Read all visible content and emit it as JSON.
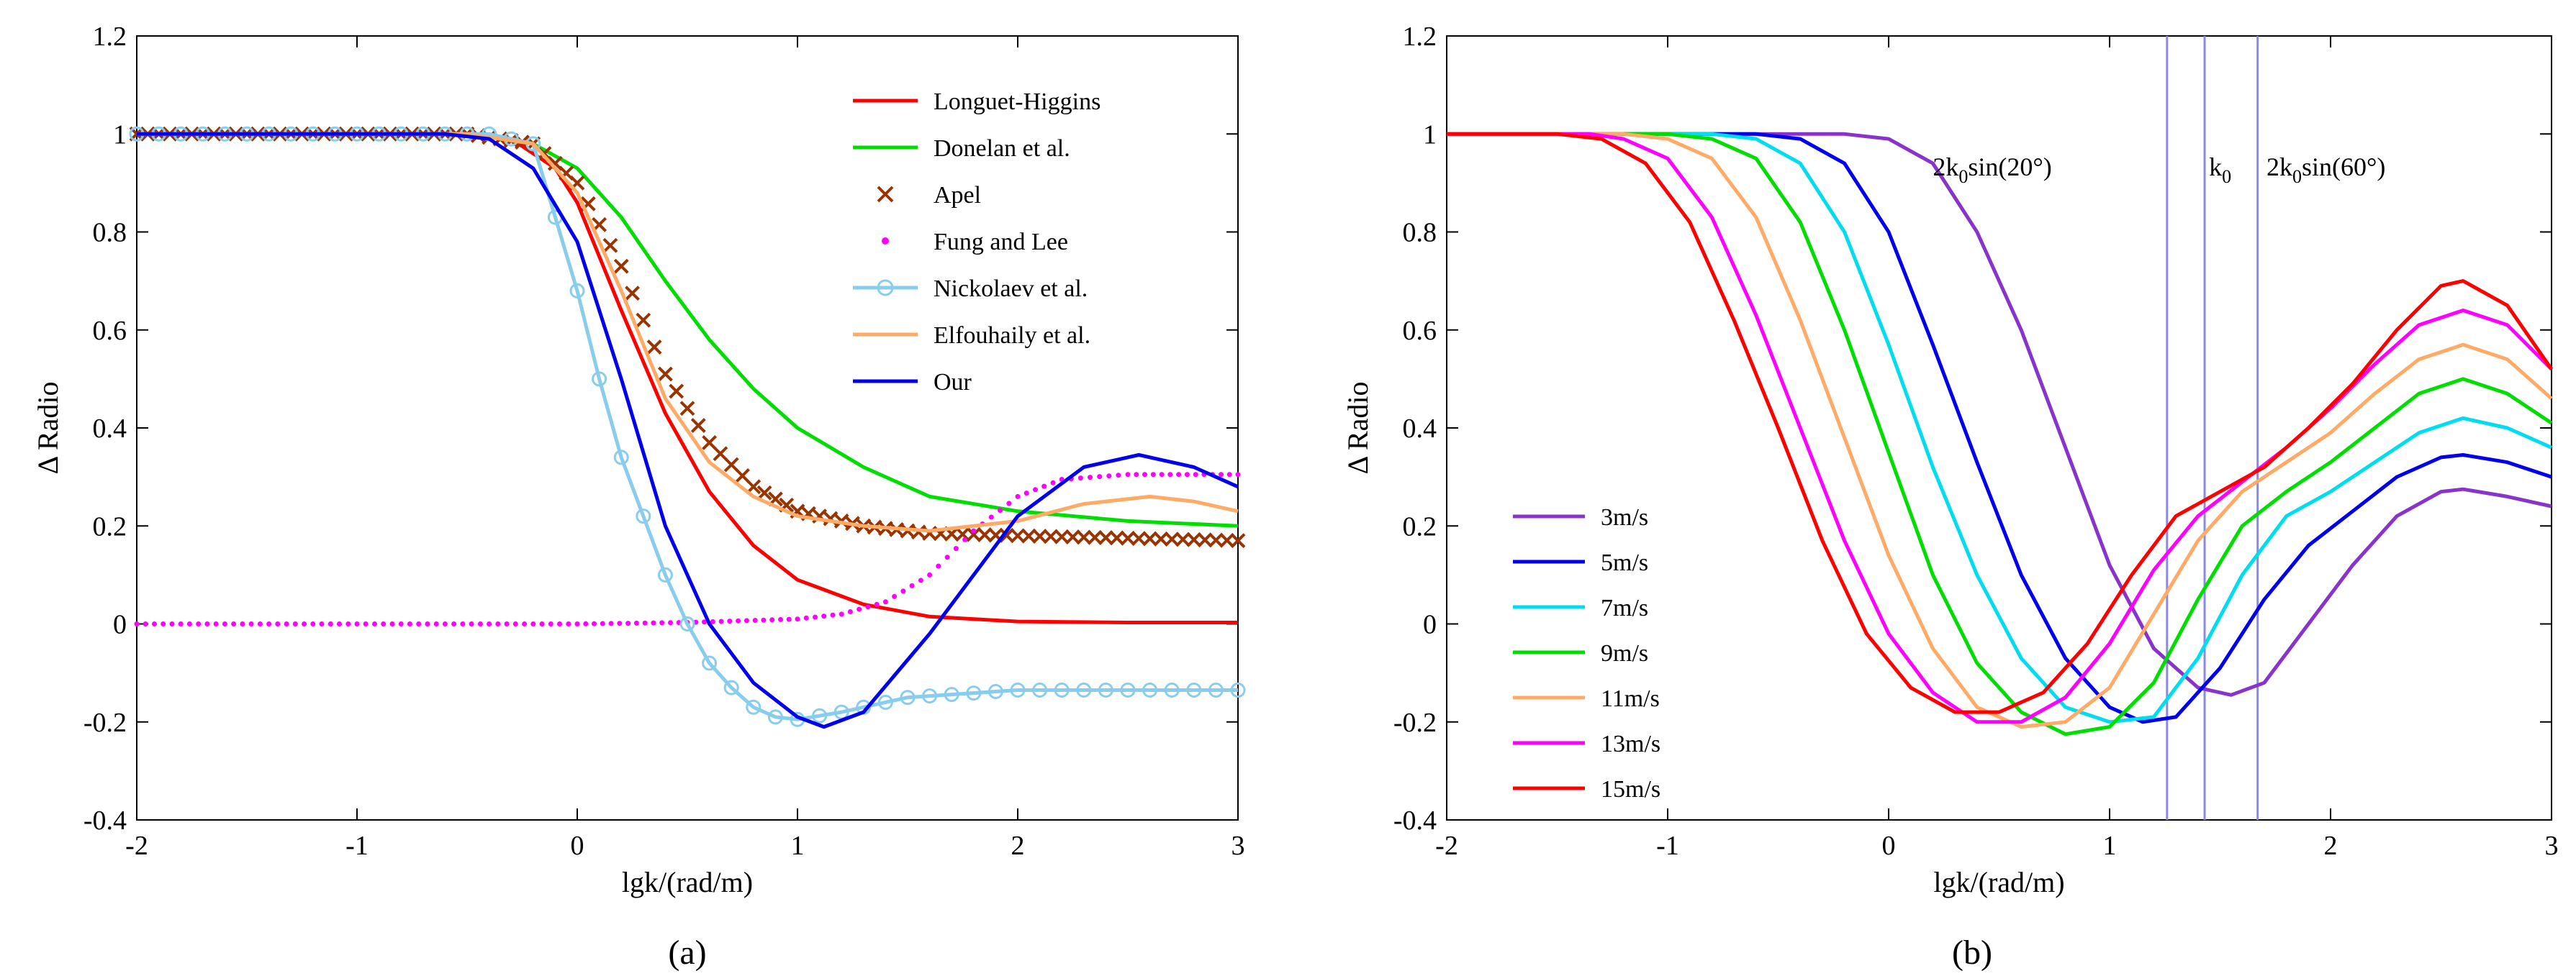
{
  "figure": {
    "caption_a": "(a)",
    "caption_b": "(b)"
  },
  "chart_data": [
    {
      "type": "line",
      "panel": "(a)",
      "title": "",
      "xlabel": "lgk/(rad/m)",
      "ylabel": "Δ Radio",
      "xlim": [
        -2,
        3
      ],
      "ylim": [
        -0.4,
        1.2
      ],
      "xticks": [
        -2,
        -1,
        0,
        1,
        2,
        3
      ],
      "yticks": [
        -0.4,
        -0.2,
        0,
        0.2,
        0.4,
        0.6,
        0.8,
        1,
        1.2
      ],
      "ytick_labels": [
        "-0.4",
        "-0.2",
        "0",
        "0.2",
        "0.4",
        "0.6",
        "0.8",
        "1",
        "1.2"
      ],
      "legend_position": "top-right",
      "series": [
        {
          "name": "Longuet-Higgins",
          "color": "#ff0000",
          "style": "solid",
          "x": [
            -2,
            -0.5,
            -0.3,
            -0.1,
            0,
            0.2,
            0.4,
            0.6,
            0.8,
            1.0,
            1.3,
            1.6,
            2.0,
            2.5,
            3.0
          ],
          "y": [
            1,
            1,
            0.99,
            0.93,
            0.86,
            0.64,
            0.43,
            0.27,
            0.16,
            0.09,
            0.04,
            0.015,
            0.005,
            0.003,
            0.003
          ]
        },
        {
          "name": "Donelan et al.",
          "color": "#00dd00",
          "style": "solid",
          "x": [
            -2,
            -0.5,
            -0.2,
            0,
            0.2,
            0.4,
            0.6,
            0.8,
            1.0,
            1.3,
            1.6,
            2.0,
            2.5,
            3.0
          ],
          "y": [
            1,
            1,
            0.98,
            0.93,
            0.83,
            0.7,
            0.58,
            0.48,
            0.4,
            0.32,
            0.26,
            0.23,
            0.21,
            0.2
          ]
        },
        {
          "name": "Apel",
          "color": "#993300",
          "style": "x",
          "x": [
            -2,
            -0.5,
            -0.2,
            0,
            0.2,
            0.4,
            0.6,
            0.8,
            1.0,
            1.3,
            1.6,
            2.0,
            2.5,
            3.0
          ],
          "y": [
            1,
            1,
            0.98,
            0.9,
            0.73,
            0.51,
            0.37,
            0.28,
            0.23,
            0.2,
            0.185,
            0.18,
            0.175,
            0.17
          ]
        },
        {
          "name": "Fung and Lee",
          "color": "#ff00ff",
          "style": "dot",
          "x": [
            -2,
            0,
            0.5,
            1.0,
            1.2,
            1.4,
            1.6,
            1.8,
            2.0,
            2.2,
            2.5,
            3.0
          ],
          "y": [
            0,
            0,
            0.003,
            0.01,
            0.02,
            0.045,
            0.1,
            0.19,
            0.26,
            0.295,
            0.305,
            0.305
          ]
        },
        {
          "name": "Nickolaev et al.",
          "color": "#88ccee",
          "style": "circle",
          "x": [
            -2,
            -0.6,
            -0.4,
            -0.2,
            0,
            0.1,
            0.2,
            0.3,
            0.4,
            0.5,
            0.6,
            0.7,
            0.8,
            0.9,
            1.0,
            1.2,
            1.5,
            2.0,
            2.5,
            3.0
          ],
          "y": [
            1,
            1,
            1,
            0.98,
            0.68,
            0.5,
            0.34,
            0.22,
            0.1,
            0.0,
            -0.08,
            -0.13,
            -0.17,
            -0.19,
            -0.195,
            -0.18,
            -0.15,
            -0.135,
            -0.135,
            -0.135
          ]
        },
        {
          "name": "Elfouhaily et al.",
          "color": "#ffaa66",
          "style": "solid",
          "x": [
            -2,
            -0.5,
            -0.2,
            0,
            0.2,
            0.4,
            0.6,
            0.8,
            1.0,
            1.3,
            1.6,
            2.0,
            2.3,
            2.6,
            2.8,
            3.0
          ],
          "y": [
            1,
            1,
            0.98,
            0.88,
            0.68,
            0.46,
            0.33,
            0.26,
            0.22,
            0.2,
            0.19,
            0.21,
            0.245,
            0.26,
            0.25,
            0.23
          ]
        },
        {
          "name": "Our",
          "color": "#0000ee",
          "style": "solid",
          "x": [
            -2,
            -0.6,
            -0.4,
            -0.2,
            0,
            0.2,
            0.4,
            0.6,
            0.8,
            1.0,
            1.12,
            1.3,
            1.6,
            2.0,
            2.3,
            2.55,
            2.8,
            3.0
          ],
          "y": [
            1,
            1,
            0.99,
            0.93,
            0.78,
            0.5,
            0.2,
            0.0,
            -0.12,
            -0.19,
            -0.21,
            -0.18,
            -0.02,
            0.22,
            0.32,
            0.345,
            0.32,
            0.28
          ]
        }
      ]
    },
    {
      "type": "line",
      "panel": "(b)",
      "title": "",
      "xlabel": "lgk/(rad/m)",
      "ylabel": "Δ Radio",
      "xlim": [
        -2,
        3
      ],
      "ylim": [
        -0.4,
        1.2
      ],
      "xticks": [
        -2,
        -1,
        0,
        1,
        2,
        3
      ],
      "yticks": [
        -0.4,
        -0.2,
        0,
        0.2,
        0.4,
        0.6,
        0.8,
        1,
        1.2
      ],
      "ytick_labels": [
        "-0.4",
        "-0.2",
        "0",
        "0.2",
        "0.4",
        "0.6",
        "0.8",
        "1",
        "1.2"
      ],
      "legend_position": "bottom-left",
      "vertical_lines": [
        {
          "x": 1.26,
          "color": "#8888ee"
        },
        {
          "x": 1.43,
          "color": "#8888ee"
        },
        {
          "x": 1.67,
          "color": "#8888ee"
        }
      ],
      "annotations": [
        {
          "pre": "2k",
          "sub": "0",
          "post": "sin(20°)",
          "x": 0.2,
          "y": 0.915
        },
        {
          "pre": "k",
          "sub": "0",
          "post": "",
          "x": 1.45,
          "y": 0.915
        },
        {
          "pre": "2k",
          "sub": "0",
          "post": "sin(60°)",
          "x": 1.71,
          "y": 0.915
        }
      ],
      "series": [
        {
          "name": "3m/s",
          "color": "#8833cc",
          "x": [
            -2,
            -0.2,
            0,
            0.2,
            0.4,
            0.6,
            0.8,
            1.0,
            1.2,
            1.4,
            1.55,
            1.7,
            1.9,
            2.1,
            2.3,
            2.5,
            2.6,
            2.8,
            3.0
          ],
          "y": [
            1,
            1,
            0.99,
            0.94,
            0.8,
            0.6,
            0.36,
            0.12,
            -0.05,
            -0.13,
            -0.145,
            -0.12,
            0.0,
            0.12,
            0.22,
            0.27,
            0.275,
            0.26,
            0.24
          ]
        },
        {
          "name": "5m/s",
          "color": "#0000ee",
          "x": [
            -2,
            -0.6,
            -0.4,
            -0.2,
            0,
            0.2,
            0.4,
            0.6,
            0.8,
            1.0,
            1.15,
            1.3,
            1.5,
            1.7,
            1.9,
            2.1,
            2.3,
            2.5,
            2.6,
            2.8,
            3.0
          ],
          "y": [
            1,
            1,
            0.99,
            0.94,
            0.8,
            0.57,
            0.33,
            0.1,
            -0.07,
            -0.17,
            -0.2,
            -0.19,
            -0.09,
            0.05,
            0.16,
            0.23,
            0.3,
            0.34,
            0.345,
            0.33,
            0.3
          ]
        },
        {
          "name": "7m/s",
          "color": "#00ddee",
          "x": [
            -2,
            -0.8,
            -0.6,
            -0.4,
            -0.2,
            0,
            0.2,
            0.4,
            0.6,
            0.8,
            1.0,
            1.2,
            1.4,
            1.6,
            1.8,
            2.0,
            2.2,
            2.4,
            2.6,
            2.8,
            3.0
          ],
          "y": [
            1,
            1,
            0.99,
            0.94,
            0.8,
            0.57,
            0.32,
            0.1,
            -0.07,
            -0.17,
            -0.2,
            -0.19,
            -0.07,
            0.1,
            0.22,
            0.27,
            0.33,
            0.39,
            0.42,
            0.4,
            0.36
          ]
        },
        {
          "name": "9m/s",
          "color": "#00dd00",
          "x": [
            -2,
            -1.0,
            -0.8,
            -0.6,
            -0.4,
            -0.2,
            0,
            0.2,
            0.4,
            0.6,
            0.8,
            1.0,
            1.2,
            1.4,
            1.6,
            1.8,
            2.0,
            2.2,
            2.4,
            2.6,
            2.8,
            3.0
          ],
          "y": [
            1,
            1,
            0.99,
            0.95,
            0.82,
            0.6,
            0.35,
            0.1,
            -0.08,
            -0.18,
            -0.225,
            -0.21,
            -0.12,
            0.05,
            0.2,
            0.27,
            0.33,
            0.4,
            0.47,
            0.5,
            0.47,
            0.41
          ]
        },
        {
          "name": "11m/s",
          "color": "#ffaa66",
          "x": [
            -2,
            -1.2,
            -1.0,
            -0.8,
            -0.6,
            -0.4,
            -0.2,
            0,
            0.2,
            0.4,
            0.6,
            0.8,
            1.0,
            1.2,
            1.4,
            1.6,
            1.8,
            2.0,
            2.2,
            2.4,
            2.6,
            2.8,
            3.0
          ],
          "y": [
            1,
            1,
            0.99,
            0.95,
            0.83,
            0.62,
            0.38,
            0.14,
            -0.05,
            -0.17,
            -0.21,
            -0.2,
            -0.13,
            0.02,
            0.17,
            0.27,
            0.33,
            0.39,
            0.47,
            0.54,
            0.57,
            0.54,
            0.46
          ]
        },
        {
          "name": "13m/s",
          "color": "#ff00ff",
          "x": [
            -2,
            -1.35,
            -1.2,
            -1.0,
            -0.8,
            -0.6,
            -0.4,
            -0.2,
            0,
            0.2,
            0.4,
            0.6,
            0.8,
            1.0,
            1.2,
            1.4,
            1.6,
            1.8,
            2.0,
            2.2,
            2.4,
            2.6,
            2.8,
            3.0
          ],
          "y": [
            1,
            1,
            0.99,
            0.95,
            0.83,
            0.63,
            0.4,
            0.17,
            -0.02,
            -0.14,
            -0.2,
            -0.2,
            -0.15,
            -0.04,
            0.11,
            0.22,
            0.29,
            0.36,
            0.44,
            0.53,
            0.61,
            0.64,
            0.61,
            0.52
          ]
        },
        {
          "name": "15m/s",
          "color": "#ff0000",
          "x": [
            -2,
            -1.5,
            -1.3,
            -1.1,
            -0.9,
            -0.7,
            -0.5,
            -0.3,
            -0.1,
            0.1,
            0.3,
            0.5,
            0.7,
            0.9,
            1.1,
            1.3,
            1.5,
            1.7,
            1.9,
            2.1,
            2.3,
            2.5,
            2.6,
            2.8,
            3.0
          ],
          "y": [
            1,
            1,
            0.99,
            0.94,
            0.82,
            0.62,
            0.4,
            0.17,
            -0.02,
            -0.13,
            -0.18,
            -0.18,
            -0.14,
            -0.04,
            0.1,
            0.22,
            0.27,
            0.32,
            0.4,
            0.49,
            0.6,
            0.69,
            0.7,
            0.65,
            0.52
          ]
        }
      ]
    }
  ]
}
